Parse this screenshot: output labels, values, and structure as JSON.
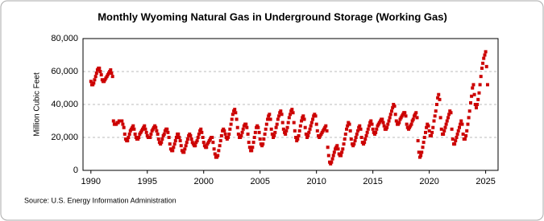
{
  "chart_data": {
    "type": "scatter",
    "title": "Monthly Wyoming Natural Gas in Underground Storage (Working Gas)",
    "y_label": "Million Cubic Feet",
    "source": "Source: U.S. Energy Information Administration",
    "xlim": [
      1989.3,
      2026.1
    ],
    "xticks": [
      1990,
      1995,
      2000,
      2005,
      2010,
      2015,
      2020,
      2025
    ],
    "ylim": [
      0,
      80000
    ],
    "yticks": [
      0,
      {
        "value": 20000,
        "label": "20,000"
      },
      {
        "value": 40000,
        "label": "40,000"
      },
      {
        "value": 60000,
        "label": "60,000"
      },
      {
        "value": 80000,
        "label": "80,000"
      }
    ],
    "grid": true,
    "series": [
      {
        "name": "Working Gas",
        "color": "#cc0000",
        "x": [
          1990.0,
          1990.08,
          1990.17,
          1990.25,
          1990.33,
          1990.42,
          1990.5,
          1990.58,
          1990.67,
          1990.75,
          1990.83,
          1990.92,
          1991.0,
          1991.08,
          1991.17,
          1991.25,
          1991.33,
          1991.42,
          1991.5,
          1991.58,
          1991.67,
          1991.75,
          1991.83,
          1991.92,
          1992.0,
          1992.08,
          1992.17,
          1992.25,
          1992.33,
          1992.42,
          1992.5,
          1992.58,
          1992.67,
          1992.75,
          1992.83,
          1992.92,
          1993.0,
          1993.08,
          1993.17,
          1993.25,
          1993.33,
          1993.42,
          1993.5,
          1993.58,
          1993.67,
          1993.75,
          1993.83,
          1993.92,
          1994.0,
          1994.08,
          1994.17,
          1994.25,
          1994.33,
          1994.42,
          1994.5,
          1994.58,
          1994.67,
          1994.75,
          1994.83,
          1994.92,
          1995.0,
          1995.08,
          1995.17,
          1995.25,
          1995.33,
          1995.42,
          1995.5,
          1995.58,
          1995.67,
          1995.75,
          1995.83,
          1995.92,
          1996.0,
          1996.08,
          1996.17,
          1996.25,
          1996.33,
          1996.42,
          1996.5,
          1996.58,
          1996.67,
          1996.75,
          1996.83,
          1996.92,
          1997.0,
          1997.08,
          1997.17,
          1997.25,
          1997.33,
          1997.42,
          1997.5,
          1997.58,
          1997.67,
          1997.75,
          1997.83,
          1997.92,
          1998.0,
          1998.08,
          1998.17,
          1998.25,
          1998.33,
          1998.42,
          1998.5,
          1998.58,
          1998.67,
          1998.75,
          1998.83,
          1998.92,
          1999.0,
          1999.08,
          1999.17,
          1999.25,
          1999.33,
          1999.42,
          1999.5,
          1999.58,
          1999.67,
          1999.75,
          1999.83,
          1999.92,
          2000.0,
          2000.08,
          2000.17,
          2000.25,
          2000.33,
          2000.42,
          2000.5,
          2000.58,
          2000.67,
          2000.75,
          2000.83,
          2000.92,
          2001.0,
          2001.08,
          2001.17,
          2001.25,
          2001.33,
          2001.42,
          2001.5,
          2001.58,
          2001.67,
          2001.75,
          2001.83,
          2001.92,
          2002.0,
          2002.08,
          2002.17,
          2002.25,
          2002.33,
          2002.42,
          2002.5,
          2002.58,
          2002.67,
          2002.75,
          2002.83,
          2002.92,
          2003.0,
          2003.08,
          2003.17,
          2003.25,
          2003.33,
          2003.42,
          2003.5,
          2003.58,
          2003.67,
          2003.75,
          2003.83,
          2003.92,
          2004.0,
          2004.08,
          2004.17,
          2004.25,
          2004.33,
          2004.42,
          2004.5,
          2004.58,
          2004.67,
          2004.75,
          2004.83,
          2004.92,
          2005.0,
          2005.08,
          2005.17,
          2005.25,
          2005.33,
          2005.42,
          2005.5,
          2005.58,
          2005.67,
          2005.75,
          2005.83,
          2005.92,
          2006.0,
          2006.08,
          2006.17,
          2006.25,
          2006.33,
          2006.42,
          2006.5,
          2006.58,
          2006.67,
          2006.75,
          2006.83,
          2006.92,
          2007.0,
          2007.08,
          2007.17,
          2007.25,
          2007.33,
          2007.42,
          2007.5,
          2007.58,
          2007.67,
          2007.75,
          2007.83,
          2007.92,
          2008.0,
          2008.08,
          2008.17,
          2008.25,
          2008.33,
          2008.42,
          2008.5,
          2008.58,
          2008.67,
          2008.75,
          2008.83,
          2008.92,
          2009.0,
          2009.08,
          2009.17,
          2009.25,
          2009.33,
          2009.42,
          2009.5,
          2009.58,
          2009.67,
          2009.75,
          2009.83,
          2009.92,
          2010.0,
          2010.08,
          2010.17,
          2010.25,
          2010.33,
          2010.42,
          2010.5,
          2010.58,
          2010.67,
          2010.75,
          2010.83,
          2010.92,
          2011.0,
          2011.08,
          2011.17,
          2011.25,
          2011.33,
          2011.42,
          2011.5,
          2011.58,
          2011.67,
          2011.75,
          2011.83,
          2011.92,
          2012.0,
          2012.08,
          2012.17,
          2012.25,
          2012.33,
          2012.42,
          2012.5,
          2012.58,
          2012.67,
          2012.75,
          2012.83,
          2012.92,
          2013.0,
          2013.08,
          2013.17,
          2013.25,
          2013.33,
          2013.42,
          2013.5,
          2013.58,
          2013.67,
          2013.75,
          2013.83,
          2013.92,
          2014.0,
          2014.08,
          2014.17,
          2014.25,
          2014.33,
          2014.42,
          2014.5,
          2014.58,
          2014.67,
          2014.75,
          2014.83,
          2014.92,
          2015.0,
          2015.08,
          2015.17,
          2015.25,
          2015.33,
          2015.42,
          2015.5,
          2015.58,
          2015.67,
          2015.75,
          2015.83,
          2015.92,
          2016.0,
          2016.08,
          2016.17,
          2016.25,
          2016.33,
          2016.42,
          2016.5,
          2016.58,
          2016.67,
          2016.75,
          2016.83,
          2016.92,
          2017.0,
          2017.08,
          2017.17,
          2017.25,
          2017.33,
          2017.42,
          2017.5,
          2017.58,
          2017.67,
          2017.75,
          2017.83,
          2017.92,
          2018.0,
          2018.08,
          2018.17,
          2018.25,
          2018.33,
          2018.42,
          2018.5,
          2018.58,
          2018.67,
          2018.75,
          2018.83,
          2018.92,
          2019.0,
          2019.08,
          2019.17,
          2019.25,
          2019.33,
          2019.42,
          2019.5,
          2019.58,
          2019.67,
          2019.75,
          2019.83,
          2019.92,
          2020.0,
          2020.08,
          2020.17,
          2020.25,
          2020.33,
          2020.42,
          2020.5,
          2020.58,
          2020.67,
          2020.75,
          2020.83,
          2020.92,
          2021.0,
          2021.08,
          2021.17,
          2021.25,
          2021.33,
          2021.42,
          2021.5,
          2021.58,
          2021.67,
          2021.75,
          2021.83,
          2021.92,
          2022.0,
          2022.08,
          2022.17,
          2022.25,
          2022.33,
          2022.42,
          2022.5,
          2022.58,
          2022.67,
          2022.75,
          2022.83,
          2022.92,
          2023.0,
          2023.08,
          2023.17,
          2023.25,
          2023.33,
          2023.42,
          2023.5,
          2023.58,
          2023.67,
          2023.75,
          2023.83,
          2023.92,
          2024.0,
          2024.08,
          2024.17,
          2024.25,
          2024.33,
          2024.42,
          2024.5,
          2024.58,
          2024.67,
          2024.75,
          2024.83,
          2024.92,
          2025.0,
          2025.08,
          2025.17
        ],
        "values": [
          54000,
          52000,
          52000,
          53000,
          55000,
          57000,
          59000,
          61000,
          62000,
          62000,
          60000,
          58000,
          55000,
          54000,
          54000,
          55000,
          56000,
          57000,
          58000,
          59000,
          60000,
          61000,
          59000,
          57000,
          30000,
          28000,
          28000,
          28000,
          29000,
          29000,
          30000,
          30000,
          30000,
          30000,
          28000,
          26000,
          22000,
          19000,
          18000,
          18000,
          20000,
          22000,
          24000,
          25000,
          26000,
          27000,
          25000,
          22000,
          20000,
          19000,
          19000,
          20000,
          22000,
          23000,
          24000,
          25000,
          26000,
          27000,
          25000,
          23000,
          21000,
          20000,
          20000,
          20000,
          22000,
          24000,
          25000,
          26000,
          27000,
          26000,
          24000,
          22000,
          19000,
          17000,
          16000,
          17000,
          19000,
          21000,
          22000,
          24000,
          25000,
          25000,
          23000,
          20000,
          16000,
          13000,
          12000,
          12000,
          14000,
          16000,
          18000,
          20000,
          22000,
          22000,
          20000,
          18000,
          15000,
          12000,
          11000,
          11000,
          13000,
          15000,
          17000,
          19000,
          21000,
          22000,
          21000,
          19000,
          17000,
          16000,
          15000,
          15000,
          17000,
          18000,
          20000,
          22000,
          24000,
          25000,
          23000,
          20000,
          17000,
          15000,
          14000,
          14000,
          16000,
          17000,
          18000,
          19000,
          20000,
          20000,
          17000,
          13000,
          10000,
          8000,
          8000,
          9000,
          12000,
          15000,
          18000,
          21000,
          24000,
          25000,
          24000,
          22000,
          20000,
          19000,
          20000,
          22000,
          25000,
          28000,
          31000,
          34000,
          36000,
          37000,
          35000,
          31000,
          26000,
          22000,
          20000,
          20000,
          21000,
          23000,
          25000,
          27000,
          28000,
          28000,
          26000,
          22000,
          17000,
          14000,
          12000,
          12000,
          14000,
          17000,
          20000,
          23000,
          26000,
          27000,
          26000,
          23000,
          19000,
          16000,
          15000,
          16000,
          19000,
          22000,
          25000,
          28000,
          31000,
          33000,
          34000,
          31000,
          25000,
          22000,
          20000,
          21000,
          23000,
          26000,
          28000,
          31000,
          33000,
          35000,
          36000,
          34000,
          29000,
          25000,
          23000,
          22000,
          24000,
          26000,
          29000,
          32000,
          34000,
          36000,
          37000,
          35000,
          29000,
          24000,
          20000,
          18000,
          19000,
          21000,
          24000,
          27000,
          30000,
          32000,
          33000,
          31000,
          26000,
          22000,
          20000,
          21000,
          23000,
          25000,
          27000,
          29000,
          31000,
          33000,
          34000,
          33000,
          28000,
          24000,
          21000,
          20000,
          21000,
          22000,
          23000,
          24000,
          25000,
          26000,
          27000,
          24000,
          14000,
          9000,
          5000,
          4000,
          5000,
          7000,
          9000,
          11000,
          13000,
          14000,
          15000,
          13000,
          10000,
          9000,
          9000,
          11000,
          13000,
          16000,
          19000,
          22000,
          25000,
          27000,
          29000,
          28000,
          24000,
          19000,
          16000,
          15000,
          16000,
          18000,
          20000,
          22000,
          24000,
          26000,
          27000,
          25000,
          20000,
          17000,
          16000,
          17000,
          19000,
          21000,
          23000,
          25000,
          27000,
          29000,
          30000,
          28000,
          25000,
          23000,
          22000,
          23000,
          25000,
          27000,
          28000,
          29000,
          30000,
          31000,
          31000,
          29000,
          27000,
          25000,
          25000,
          26000,
          28000,
          30000,
          32000,
          34000,
          36000,
          38000,
          40000,
          39000,
          34000,
          30000,
          28000,
          28000,
          29000,
          31000,
          32000,
          33000,
          34000,
          35000,
          35000,
          33000,
          28000,
          26000,
          25000,
          26000,
          27000,
          28000,
          30000,
          31000,
          33000,
          34000,
          35000,
          32000,
          18000,
          11000,
          8000,
          9000,
          11000,
          14000,
          17000,
          20000,
          23000,
          26000,
          28000,
          27000,
          24000,
          21000,
          21000,
          23000,
          26000,
          30000,
          33000,
          36000,
          40000,
          44000,
          46000,
          43000,
          32000,
          25000,
          22000,
          22000,
          24000,
          26000,
          28000,
          30000,
          32000,
          34000,
          36000,
          35000,
          25000,
          19000,
          16000,
          16000,
          18000,
          20000,
          22000,
          24000,
          26000,
          28000,
          30000,
          28000,
          22000,
          19000,
          19000,
          21000,
          24000,
          28000,
          32000,
          36000,
          41000,
          45000,
          50000,
          52000,
          46000,
          40000,
          38000,
          40000,
          43000,
          47000,
          52000,
          57000,
          62000,
          65000,
          68000,
          70000,
          72000,
          63000,
          52000
        ]
      }
    ]
  }
}
